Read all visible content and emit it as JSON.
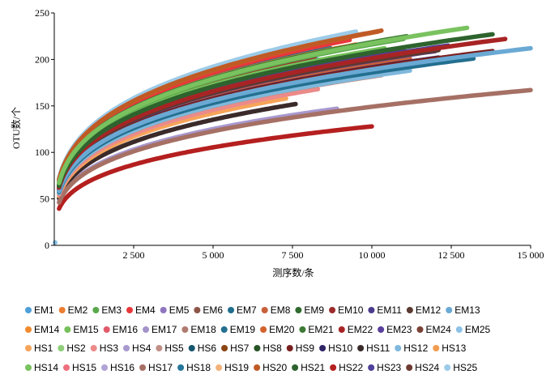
{
  "chart_data": {
    "type": "line",
    "title": "",
    "xlabel": "测序数/条",
    "ylabel": "OTU数/个",
    "xlim": [
      0,
      15000
    ],
    "ylim": [
      0,
      250
    ],
    "x_ticks": [
      2500,
      5000,
      7500,
      10000,
      12500,
      15000
    ],
    "x_tick_labels": [
      "2 500",
      "5 000",
      "7 500",
      "10 000",
      "12 500",
      "15 000"
    ],
    "y_ticks": [
      0,
      50,
      100,
      150,
      200,
      250
    ],
    "y_tick_labels": [
      "0",
      "50",
      "100",
      "150",
      "200",
      "250"
    ],
    "grid": false,
    "legend_position": "bottom",
    "series": [
      {
        "name": "EM1",
        "color": "#4f9fd8",
        "max_x": 8300,
        "final_y": 200
      },
      {
        "name": "EM2",
        "color": "#ec7d31",
        "max_x": 9500,
        "final_y": 216
      },
      {
        "name": "EM3",
        "color": "#5aa84b",
        "max_x": 11000,
        "final_y": 222
      },
      {
        "name": "EM4",
        "color": "#e8373a",
        "max_x": 9300,
        "final_y": 221
      },
      {
        "name": "EM5",
        "color": "#8f74c0",
        "max_x": 10500,
        "final_y": 206
      },
      {
        "name": "EM6",
        "color": "#8c5548",
        "max_x": 9800,
        "final_y": 193
      },
      {
        "name": "EM7",
        "color": "#1f6e8c",
        "max_x": 8700,
        "final_y": 212
      },
      {
        "name": "EM8",
        "color": "#c8603a",
        "max_x": 11200,
        "final_y": 201
      },
      {
        "name": "EM9",
        "color": "#2f6b2f",
        "max_x": 7800,
        "final_y": 196
      },
      {
        "name": "EM10",
        "color": "#9c2b2b",
        "max_x": 8200,
        "final_y": 202
      },
      {
        "name": "EM11",
        "color": "#4a3b8c",
        "max_x": 9700,
        "final_y": 205
      },
      {
        "name": "EM12",
        "color": "#5b3a32",
        "max_x": 12100,
        "final_y": 210
      },
      {
        "name": "EM13",
        "color": "#6aa9d4",
        "max_x": 15000,
        "final_y": 212
      },
      {
        "name": "EM14",
        "color": "#f08a2c",
        "max_x": 7000,
        "final_y": 195
      },
      {
        "name": "EM15",
        "color": "#74c05a",
        "max_x": 10400,
        "final_y": 212
      },
      {
        "name": "EM16",
        "color": "#e25a6a",
        "max_x": 8100,
        "final_y": 188
      },
      {
        "name": "EM17",
        "color": "#a493c9",
        "max_x": 9200,
        "final_y": 187
      },
      {
        "name": "EM18",
        "color": "#b07b70",
        "max_x": 6000,
        "final_y": 198
      },
      {
        "name": "EM19",
        "color": "#236f8f",
        "max_x": 13200,
        "final_y": 201
      },
      {
        "name": "EM20",
        "color": "#d4622c",
        "max_x": 10200,
        "final_y": 230
      },
      {
        "name": "EM21",
        "color": "#3d7a35",
        "max_x": 11100,
        "final_y": 225
      },
      {
        "name": "EM22",
        "color": "#a82424",
        "max_x": 14200,
        "final_y": 222
      },
      {
        "name": "EM23",
        "color": "#5a3f9c",
        "max_x": 12000,
        "final_y": 209
      },
      {
        "name": "EM24",
        "color": "#7a4236",
        "max_x": 10700,
        "final_y": 221
      },
      {
        "name": "EM25",
        "color": "#8cc2e6",
        "max_x": 9800,
        "final_y": 228
      },
      {
        "name": "HS1",
        "color": "#f6a45a",
        "max_x": 7300,
        "final_y": 158
      },
      {
        "name": "HS2",
        "color": "#8fce7a",
        "max_x": 12800,
        "final_y": 200
      },
      {
        "name": "HS3",
        "color": "#ec8a8a",
        "max_x": 8300,
        "final_y": 168
      },
      {
        "name": "HS4",
        "color": "#a899cf",
        "max_x": 8900,
        "final_y": 147
      },
      {
        "name": "HS5",
        "color": "#c09086",
        "max_x": 10300,
        "final_y": 183
      },
      {
        "name": "HS6",
        "color": "#16566f",
        "max_x": 11800,
        "final_y": 195
      },
      {
        "name": "HS7",
        "color": "#8b4414",
        "max_x": 10000,
        "final_y": 186
      },
      {
        "name": "HS8",
        "color": "#275427",
        "max_x": 6400,
        "final_y": 185
      },
      {
        "name": "HS9",
        "color": "#7a1f1f",
        "max_x": 13800,
        "final_y": 209
      },
      {
        "name": "HS10",
        "color": "#2e2466",
        "max_x": 12100,
        "final_y": 202
      },
      {
        "name": "HS11",
        "color": "#3b2a2a",
        "max_x": 7600,
        "final_y": 152
      },
      {
        "name": "HS12",
        "color": "#7fb8dc",
        "max_x": 11200,
        "final_y": 188
      },
      {
        "name": "HS13",
        "color": "#f29b4e",
        "max_x": 9500,
        "final_y": 198
      },
      {
        "name": "HS14",
        "color": "#79c25f",
        "max_x": 13000,
        "final_y": 234
      },
      {
        "name": "HS15",
        "color": "#ee6f7c",
        "max_x": 10800,
        "final_y": 192
      },
      {
        "name": "HS16",
        "color": "#b0a3d6",
        "max_x": 11900,
        "final_y": 197
      },
      {
        "name": "HS17",
        "color": "#a67065",
        "max_x": 15000,
        "final_y": 167
      },
      {
        "name": "HS18",
        "color": "#26789a",
        "max_x": 9000,
        "final_y": 203
      },
      {
        "name": "HS19",
        "color": "#f3b27a",
        "max_x": 6900,
        "final_y": 176
      },
      {
        "name": "HS20",
        "color": "#c05a25",
        "max_x": 10300,
        "final_y": 231
      },
      {
        "name": "HS21",
        "color": "#2e632e",
        "max_x": 13800,
        "final_y": 227
      },
      {
        "name": "HS22",
        "color": "#b51f1f",
        "max_x": 10000,
        "final_y": 128
      },
      {
        "name": "HS23",
        "color": "#50409a",
        "max_x": 12400,
        "final_y": 215
      },
      {
        "name": "HS24",
        "color": "#6e3a31",
        "max_x": 11000,
        "final_y": 210
      },
      {
        "name": "HS25",
        "color": "#9ccbe8",
        "max_x": 9500,
        "final_y": 230
      }
    ]
  }
}
